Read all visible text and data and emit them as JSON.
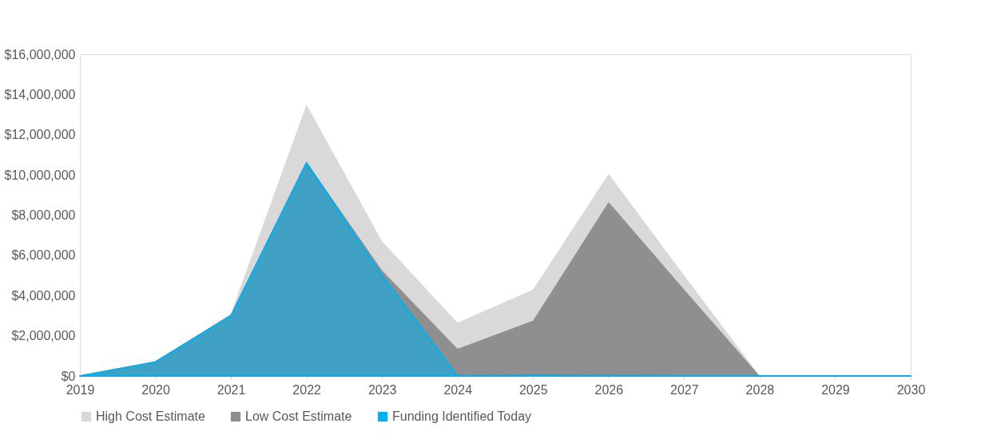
{
  "chart_data": {
    "type": "area",
    "categories": [
      "2019",
      "2020",
      "2021",
      "2022",
      "2023",
      "2024",
      "2025",
      "2026",
      "2027",
      "2028",
      "2029",
      "2030"
    ],
    "series": [
      {
        "name": "High Cost Estimate",
        "color": "#d9d9d9",
        "values": [
          0,
          700000,
          3100000,
          13500000,
          6700000,
          2650000,
          4300000,
          10050000,
          5000000,
          0,
          0,
          0
        ]
      },
      {
        "name": "Low Cost Estimate",
        "color": "#8f8f8f",
        "values": [
          0,
          700000,
          3000000,
          10650000,
          5250000,
          1350000,
          2750000,
          8650000,
          4300000,
          0,
          0,
          0
        ]
      },
      {
        "name": "Funding Identified Today",
        "color": "#00b0f0",
        "values": [
          0,
          700000,
          3000000,
          10600000,
          5000000,
          0,
          50000,
          20000,
          0,
          0,
          0,
          0
        ]
      }
    ],
    "ylim": [
      0,
      16000000
    ],
    "yticks": [
      {
        "value": 0,
        "label": "$0"
      },
      {
        "value": 2000000,
        "label": "$2,000,000"
      },
      {
        "value": 4000000,
        "label": "$4,000,000"
      },
      {
        "value": 6000000,
        "label": "$6,000,000"
      },
      {
        "value": 8000000,
        "label": "$8,000,000"
      },
      {
        "value": 10000000,
        "label": "$10,000,000"
      },
      {
        "value": 12000000,
        "label": "$12,000,000"
      },
      {
        "value": 14000000,
        "label": "$14,000,000"
      },
      {
        "value": 16000000,
        "label": "$16,000,000"
      }
    ],
    "grid": false,
    "legend": "bottom"
  }
}
